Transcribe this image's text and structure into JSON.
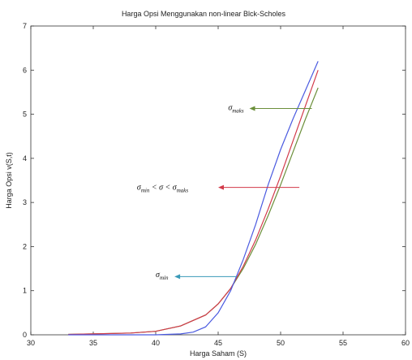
{
  "chart_data": {
    "type": "line",
    "title": "Harga Opsi Menggunakan non-linear Blck-Scholes",
    "xlabel": "Harga Saham (S)",
    "ylabel": "Harga Opsi  v(S,t)",
    "xlim": [
      30,
      60
    ],
    "ylim": [
      0,
      7
    ],
    "xticks": [
      30,
      35,
      40,
      45,
      50,
      55,
      60
    ],
    "yticks": [
      0,
      1,
      2,
      3,
      4,
      5,
      6,
      7
    ],
    "grid": false,
    "series": [
      {
        "color": "#6b8f3a",
        "x": [
          33,
          35,
          38,
          40,
          42,
          44,
          45,
          46,
          47,
          48,
          49,
          50,
          51,
          52,
          53
        ],
        "y": [
          0.01,
          0.02,
          0.04,
          0.08,
          0.2,
          0.45,
          0.7,
          1.05,
          1.5,
          2.05,
          2.7,
          3.4,
          4.15,
          4.9,
          5.6
        ]
      },
      {
        "color": "#d23a4a",
        "x": [
          33,
          35,
          38,
          40,
          42,
          44,
          45,
          46,
          47,
          48,
          49,
          50,
          51,
          52,
          53
        ],
        "y": [
          0.01,
          0.02,
          0.04,
          0.08,
          0.2,
          0.45,
          0.7,
          1.05,
          1.55,
          2.15,
          2.85,
          3.6,
          4.4,
          5.2,
          6.0
        ]
      },
      {
        "color": "#4a5ae0",
        "x": [
          33,
          35,
          38,
          40,
          42,
          43,
          44,
          45,
          46,
          47,
          48,
          49,
          50,
          51,
          52,
          53
        ],
        "y": [
          0.0,
          0.0,
          0.0,
          0.0,
          0.02,
          0.06,
          0.18,
          0.5,
          1.0,
          1.7,
          2.5,
          3.4,
          4.2,
          4.9,
          5.55,
          6.2
        ]
      }
    ],
    "annotations": [
      {
        "name": "sigma-max",
        "main": "σ",
        "sub": "maks",
        "suffix": "",
        "color": "#6b8f3a",
        "text_x": 45.8,
        "text_y": 5.15,
        "arrow_from_x": 52.5,
        "arrow_to_x": 47.5,
        "arrow_y": 5.13
      },
      {
        "name": "sigma-between",
        "prefix_main": "σ",
        "prefix_sub": "min",
        "middle": " < σ < ",
        "main": "σ",
        "sub": "maks",
        "color": "#d23a4a",
        "text_x": 38.5,
        "text_y": 3.34,
        "arrow_from_x": 51.5,
        "arrow_to_x": 45.0,
        "arrow_y": 3.34
      },
      {
        "name": "sigma-min",
        "main": "σ",
        "sub": "min",
        "suffix": "",
        "color": "#3a9ab8",
        "text_x": 40.0,
        "text_y": 1.36,
        "arrow_from_x": 46.5,
        "arrow_to_x": 41.5,
        "arrow_y": 1.32
      }
    ]
  }
}
